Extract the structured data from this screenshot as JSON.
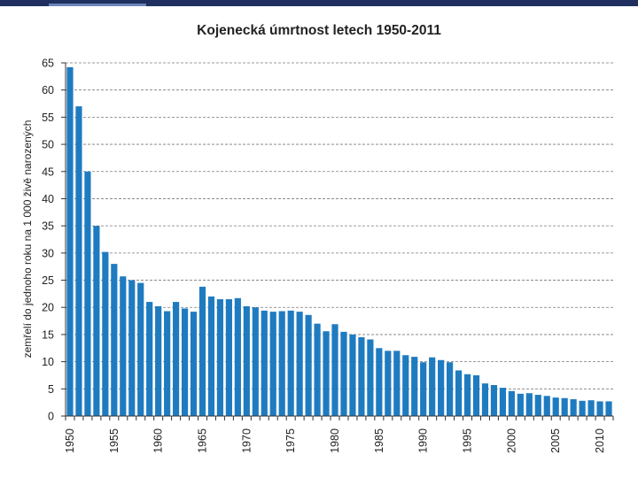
{
  "chart_data": {
    "type": "bar",
    "title": "Kojenecká úmrtnost letech 1950-2011",
    "xlabel": "",
    "ylabel": "zemřelí do jednoho roku na 1 000 živě narozených",
    "ylim": [
      0,
      65
    ],
    "y_ticks": [
      "0",
      "5",
      "10",
      "15",
      "20",
      "25",
      "30",
      "35",
      "40",
      "45",
      "50",
      "55",
      "60",
      "65"
    ],
    "x_tick_labels": [
      "1950",
      "1955",
      "1960",
      "1965",
      "1970",
      "1975",
      "1980",
      "1985",
      "1990",
      "1995",
      "2000",
      "2005",
      "2010"
    ],
    "grid": "horizontal-dashed",
    "bar_color": "#1f7bc0",
    "categories": [
      "1950",
      "1951",
      "1952",
      "1953",
      "1954",
      "1955",
      "1956",
      "1957",
      "1958",
      "1959",
      "1960",
      "1961",
      "1962",
      "1963",
      "1964",
      "1965",
      "1966",
      "1967",
      "1968",
      "1969",
      "1970",
      "1971",
      "1972",
      "1973",
      "1974",
      "1975",
      "1976",
      "1977",
      "1978",
      "1979",
      "1980",
      "1981",
      "1982",
      "1983",
      "1984",
      "1985",
      "1986",
      "1987",
      "1988",
      "1989",
      "1990",
      "1991",
      "1992",
      "1993",
      "1994",
      "1995",
      "1996",
      "1997",
      "1998",
      "1999",
      "2000",
      "2001",
      "2002",
      "2003",
      "2004",
      "2005",
      "2006",
      "2007",
      "2008",
      "2009",
      "2010",
      "2011"
    ],
    "values": [
      64.2,
      57.0,
      45.0,
      35.0,
      30.2,
      28.0,
      25.7,
      25.0,
      24.5,
      21.0,
      20.2,
      19.3,
      21.0,
      19.8,
      19.2,
      23.8,
      22.0,
      21.5,
      21.5,
      21.7,
      20.2,
      20.0,
      19.4,
      19.2,
      19.3,
      19.4,
      19.2,
      18.6,
      17.0,
      15.6,
      16.9,
      15.5,
      15.0,
      14.5,
      14.1,
      12.5,
      12.0,
      12.0,
      11.2,
      10.9,
      9.9,
      10.8,
      10.3,
      9.9,
      8.4,
      7.7,
      7.5,
      6.0,
      5.7,
      5.2,
      4.6,
      4.1,
      4.2,
      3.9,
      3.7,
      3.4,
      3.3,
      3.1,
      2.8,
      2.9,
      2.7,
      2.7
    ]
  }
}
